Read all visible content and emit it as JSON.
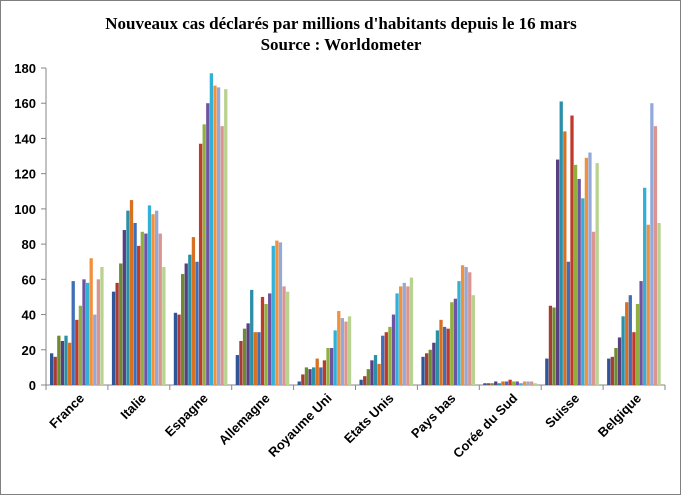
{
  "chart_data": {
    "type": "bar",
    "title": "Nouveaux cas déclarés par millions d'habitants depuis le 16 mars",
    "subtitle": "Source : Worldometer",
    "xlabel": "",
    "ylabel": "",
    "ylim": [
      0,
      180
    ],
    "yticks": [
      0,
      20,
      40,
      60,
      80,
      100,
      120,
      140,
      160,
      180
    ],
    "grid": false,
    "legend": "none",
    "categories": [
      "France",
      "Italie",
      "Espagne",
      "Allemagne",
      "Royaume Uni",
      "Etats Unis",
      "Pays bas",
      "Corée du Sud",
      "Suisse",
      "Belgique"
    ],
    "series_colors": [
      "#2E5597",
      "#A63C34",
      "#6F8B2F",
      "#5A3F80",
      "#2B8FA8",
      "#D9701F",
      "#3F6FB8",
      "#C0392B",
      "#8FB03E",
      "#6E53A0",
      "#33B0D6",
      "#F2913D",
      "#93A9D9",
      "#DB9590",
      "#B9D28F"
    ],
    "values": [
      [
        18,
        16,
        28,
        25,
        28,
        24,
        59,
        37,
        45,
        60,
        58,
        72,
        40,
        60,
        67
      ],
      [
        53,
        58,
        69,
        88,
        99,
        105,
        92,
        79,
        87,
        86,
        102,
        97,
        99,
        86,
        67
      ],
      [
        41,
        40,
        63,
        69,
        74,
        84,
        70,
        137,
        148,
        160,
        177,
        170,
        169,
        147,
        168
      ],
      [
        17,
        25,
        32,
        35,
        54,
        30,
        30,
        50,
        46,
        52,
        79,
        82,
        81,
        56,
        53
      ],
      [
        2,
        6,
        10,
        9,
        10,
        15,
        10,
        14,
        21,
        21,
        31,
        42,
        38,
        36,
        39
      ],
      [
        3,
        5,
        9,
        14,
        17,
        12,
        28,
        30,
        33,
        40,
        52,
        56,
        58,
        56,
        61
      ],
      [
        16,
        18,
        20,
        24,
        31,
        37,
        33,
        32,
        47,
        49,
        59,
        68,
        67,
        64,
        51
      ],
      [
        1,
        1,
        1,
        2,
        1,
        2,
        2,
        3,
        2,
        2,
        1,
        2,
        2,
        2,
        1
      ],
      [
        15,
        45,
        44,
        128,
        161,
        144,
        70,
        153,
        125,
        117,
        106,
        129,
        132,
        87,
        126
      ],
      [
        15,
        16,
        21,
        27,
        39,
        47,
        51,
        30,
        46,
        59,
        112,
        91,
        160,
        147,
        92
      ]
    ]
  }
}
